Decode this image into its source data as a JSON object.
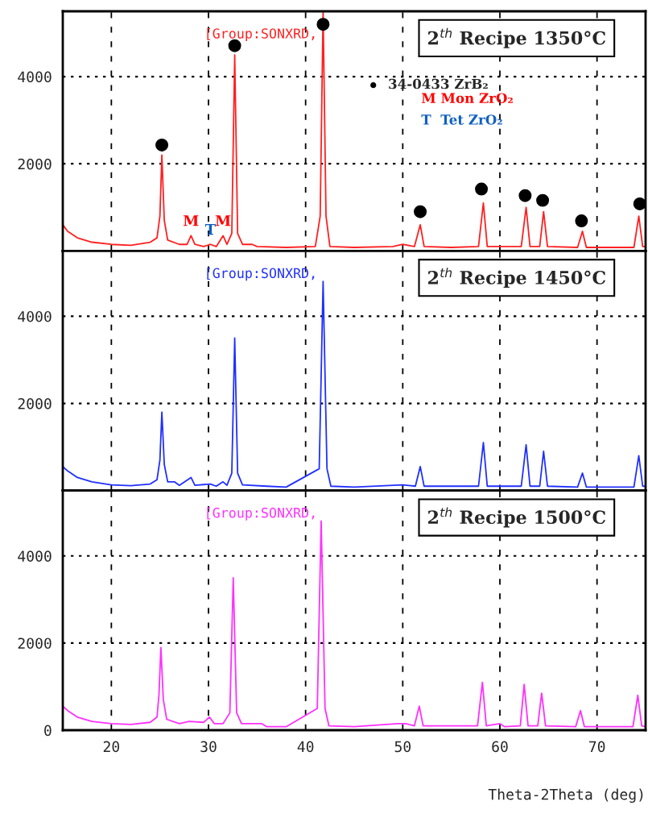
{
  "chart_data": [
    {
      "type": "line",
      "xlim": [
        15,
        75
      ],
      "xticks": [
        20,
        30,
        40,
        50,
        60,
        70
      ],
      "ylim": [
        0,
        5500
      ],
      "yticks": [
        2000,
        4000
      ],
      "tick_labels": "y",
      "grid": true,
      "legend": "top center",
      "series": [
        {
          "color": "#ff2020",
          "x": [
            15,
            15.5,
            16.5,
            18,
            20,
            22,
            24,
            24.7,
            25.0,
            25.2,
            25.45,
            25.8,
            27,
            27.8,
            28.2,
            28.6,
            29.5,
            30.2,
            30.8,
            31.5,
            31.9,
            32.4,
            32.7,
            33.0,
            33.5,
            34.5,
            35,
            38,
            41,
            41.5,
            41.8,
            42.1,
            42.5,
            45,
            49,
            50,
            51.2,
            51.8,
            52.2,
            55,
            57.8,
            58.3,
            58.7,
            60,
            62.2,
            62.7,
            63.1,
            64.1,
            64.5,
            64.9,
            68,
            68.5,
            68.9,
            73.8,
            74.3,
            74.7,
            75
          ],
          "values": [
            600,
            450,
            300,
            200,
            150,
            130,
            200,
            300,
            800,
            2200,
            700,
            250,
            150,
            150,
            350,
            150,
            100,
            150,
            100,
            350,
            150,
            400,
            4500,
            400,
            150,
            150,
            100,
            80,
            100,
            800,
            5500,
            800,
            100,
            80,
            100,
            150,
            100,
            600,
            100,
            80,
            100,
            1100,
            100,
            100,
            100,
            1000,
            100,
            100,
            900,
            100,
            80,
            450,
            80,
            80,
            800,
            100,
            100
          ]
        },
        {
          "type": "scatter",
          "name": "34-0433 ZrB₂",
          "color": "#000000",
          "marker": "circle",
          "x": [
            25.2,
            32.7,
            41.8,
            51.8,
            58.1,
            62.6,
            64.4,
            68.4,
            74.4
          ],
          "values": [
            2430,
            4710,
            5200,
            900,
            1420,
            1270,
            1160,
            690,
            1080
          ]
        }
      ],
      "annotations": [
        "[Group:SONXRD,",
        "2$^{th}$ Recipe 1350°C",
        "M Mon ZrO₂",
        "T  Tet ZrO₂",
        {
          "text": "M",
          "x": 28.2,
          "y": 350
        },
        {
          "text": "T",
          "x": 30.2,
          "y": 150
        },
        {
          "text": "M",
          "x": 31.5,
          "y": 350
        }
      ]
    },
    {
      "type": "line",
      "xlim": [
        15,
        75
      ],
      "xticks": [
        20,
        30,
        40,
        50,
        60,
        70
      ],
      "ylim": [
        0,
        5500
      ],
      "yticks": [
        2000,
        4000
      ],
      "tick_labels": "y",
      "grid": true,
      "series": [
        {
          "color": "#2030ff",
          "x": [
            15,
            15.5,
            16.5,
            18,
            20,
            22,
            24,
            24.7,
            25.0,
            25.2,
            25.45,
            25.8,
            26.5,
            27,
            28.2,
            28.6,
            30.2,
            30.8,
            31.5,
            31.9,
            32.4,
            32.7,
            33.0,
            33.5,
            36,
            38,
            41.4,
            41.8,
            42.2,
            42.6,
            45,
            50,
            51.3,
            51.8,
            52.2,
            57.8,
            58.3,
            58.7,
            62.2,
            62.7,
            63.1,
            64.1,
            64.5,
            64.9,
            68,
            68.5,
            68.9,
            73.8,
            74.3,
            74.7,
            75
          ],
          "values": [
            550,
            450,
            300,
            200,
            130,
            110,
            150,
            250,
            700,
            1800,
            600,
            200,
            200,
            120,
            300,
            120,
            150,
            100,
            200,
            120,
            400,
            3500,
            400,
            130,
            100,
            80,
            500,
            4800,
            500,
            100,
            80,
            130,
            100,
            550,
            100,
            100,
            1100,
            100,
            100,
            1050,
            100,
            100,
            900,
            100,
            80,
            400,
            80,
            80,
            800,
            100,
            100
          ]
        }
      ],
      "annotations": [
        "[Group:SONXRD,",
        "2$^{th}$ Recipe 1450°C"
      ]
    },
    {
      "type": "line",
      "xlim": [
        15,
        75
      ],
      "xticks": [
        20,
        30,
        40,
        50,
        60,
        70
      ],
      "ylim": [
        0,
        5500
      ],
      "yticks": [
        0,
        2000,
        4000
      ],
      "xlabel": "Theta-2Theta (deg)",
      "grid": true,
      "series": [
        {
          "color": "#ff30ff",
          "x": [
            15,
            15.5,
            16.5,
            18,
            20,
            22,
            24,
            24.7,
            24.9,
            25.1,
            25.35,
            25.7,
            27,
            28,
            29.5,
            30.1,
            30.6,
            31.5,
            32.2,
            32.55,
            32.9,
            33.4,
            35.5,
            36,
            38,
            41.2,
            41.6,
            42.0,
            42.4,
            45,
            49.5,
            50.3,
            51.2,
            51.7,
            52.1,
            57.7,
            58.2,
            58.6,
            60,
            60.5,
            62.1,
            62.5,
            62.9,
            63.9,
            64.3,
            64.7,
            67.8,
            68.3,
            68.7,
            73.7,
            74.2,
            74.6,
            75
          ],
          "values": [
            550,
            450,
            300,
            200,
            150,
            130,
            180,
            300,
            800,
            1900,
            700,
            250,
            150,
            200,
            180,
            300,
            150,
            150,
            400,
            3500,
            400,
            150,
            150,
            80,
            80,
            500,
            4800,
            500,
            100,
            80,
            150,
            150,
            100,
            550,
            100,
            100,
            1100,
            100,
            150,
            80,
            100,
            1050,
            100,
            100,
            850,
            100,
            80,
            450,
            80,
            80,
            800,
            100,
            80
          ]
        }
      ],
      "annotations": [
        "[Group:SONXRD,",
        "2$^{th}$ Recipe 1500°C"
      ]
    }
  ]
}
